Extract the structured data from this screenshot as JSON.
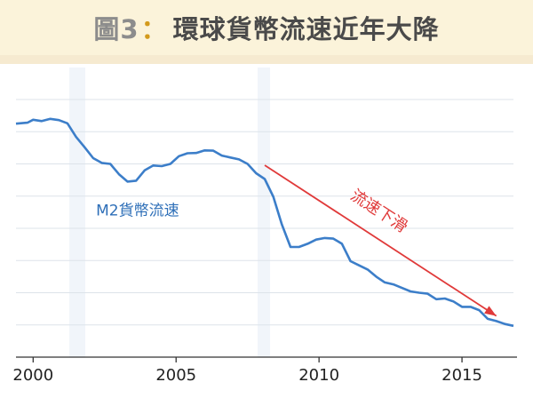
{
  "header": {
    "figure_label": "圖3",
    "separator": "：",
    "title": "環球貨幣流速近年大降"
  },
  "colors": {
    "header_bg": "#fbf3da",
    "series_line": "#3c7ec9",
    "series_label": "#2e6fb8",
    "trend_arrow": "#e03a3a",
    "gridline": "#dde3ea",
    "axis": "#333333"
  },
  "chart_data": {
    "type": "line",
    "title": "",
    "xlabel": "",
    "ylabel": "",
    "grid": true,
    "xlim": [
      1999.4,
      2016.8
    ],
    "ylim": [
      1.4,
      2.2
    ],
    "x_ticks": [
      2000,
      2005,
      2010,
      2015
    ],
    "series": [
      {
        "name": "M2貨幣流速",
        "x": [
          1999.4,
          1999.8,
          2000.0,
          2000.3,
          2000.6,
          2000.9,
          2001.2,
          2001.5,
          2001.8,
          2002.1,
          2002.4,
          2002.7,
          2003.0,
          2003.3,
          2003.6,
          2003.9,
          2004.2,
          2004.5,
          2004.8,
          2005.1,
          2005.4,
          2005.7,
          2006.0,
          2006.3,
          2006.6,
          2006.9,
          2007.2,
          2007.5,
          2007.8,
          2008.1,
          2008.4,
          2008.7,
          2009.0,
          2009.3,
          2009.6,
          2009.9,
          2010.2,
          2010.5,
          2010.8,
          2011.1,
          2011.4,
          2011.7,
          2012.0,
          2012.3,
          2012.6,
          2012.9,
          2013.2,
          2013.5,
          2013.8,
          2014.1,
          2014.4,
          2014.7,
          2015.0,
          2015.3,
          2015.6,
          2015.9,
          2016.2,
          2016.5,
          2016.8
        ],
        "values": [
          2.125,
          2.128,
          2.137,
          2.133,
          2.14,
          2.136,
          2.126,
          2.084,
          2.052,
          2.018,
          2.003,
          2.0,
          1.968,
          1.945,
          1.948,
          1.98,
          1.995,
          1.993,
          2.0,
          2.024,
          2.033,
          2.034,
          2.042,
          2.041,
          2.026,
          2.02,
          2.014,
          2.0,
          1.971,
          1.953,
          1.898,
          1.812,
          1.742,
          1.742,
          1.752,
          1.765,
          1.77,
          1.768,
          1.752,
          1.698,
          1.685,
          1.672,
          1.65,
          1.632,
          1.626,
          1.615,
          1.604,
          1.6,
          1.597,
          1.58,
          1.582,
          1.573,
          1.556,
          1.556,
          1.546,
          1.519,
          1.512,
          1.503,
          1.497
        ]
      }
    ],
    "annotations": [
      {
        "text": "流速下滑",
        "kind": "trend-arrow"
      }
    ]
  }
}
